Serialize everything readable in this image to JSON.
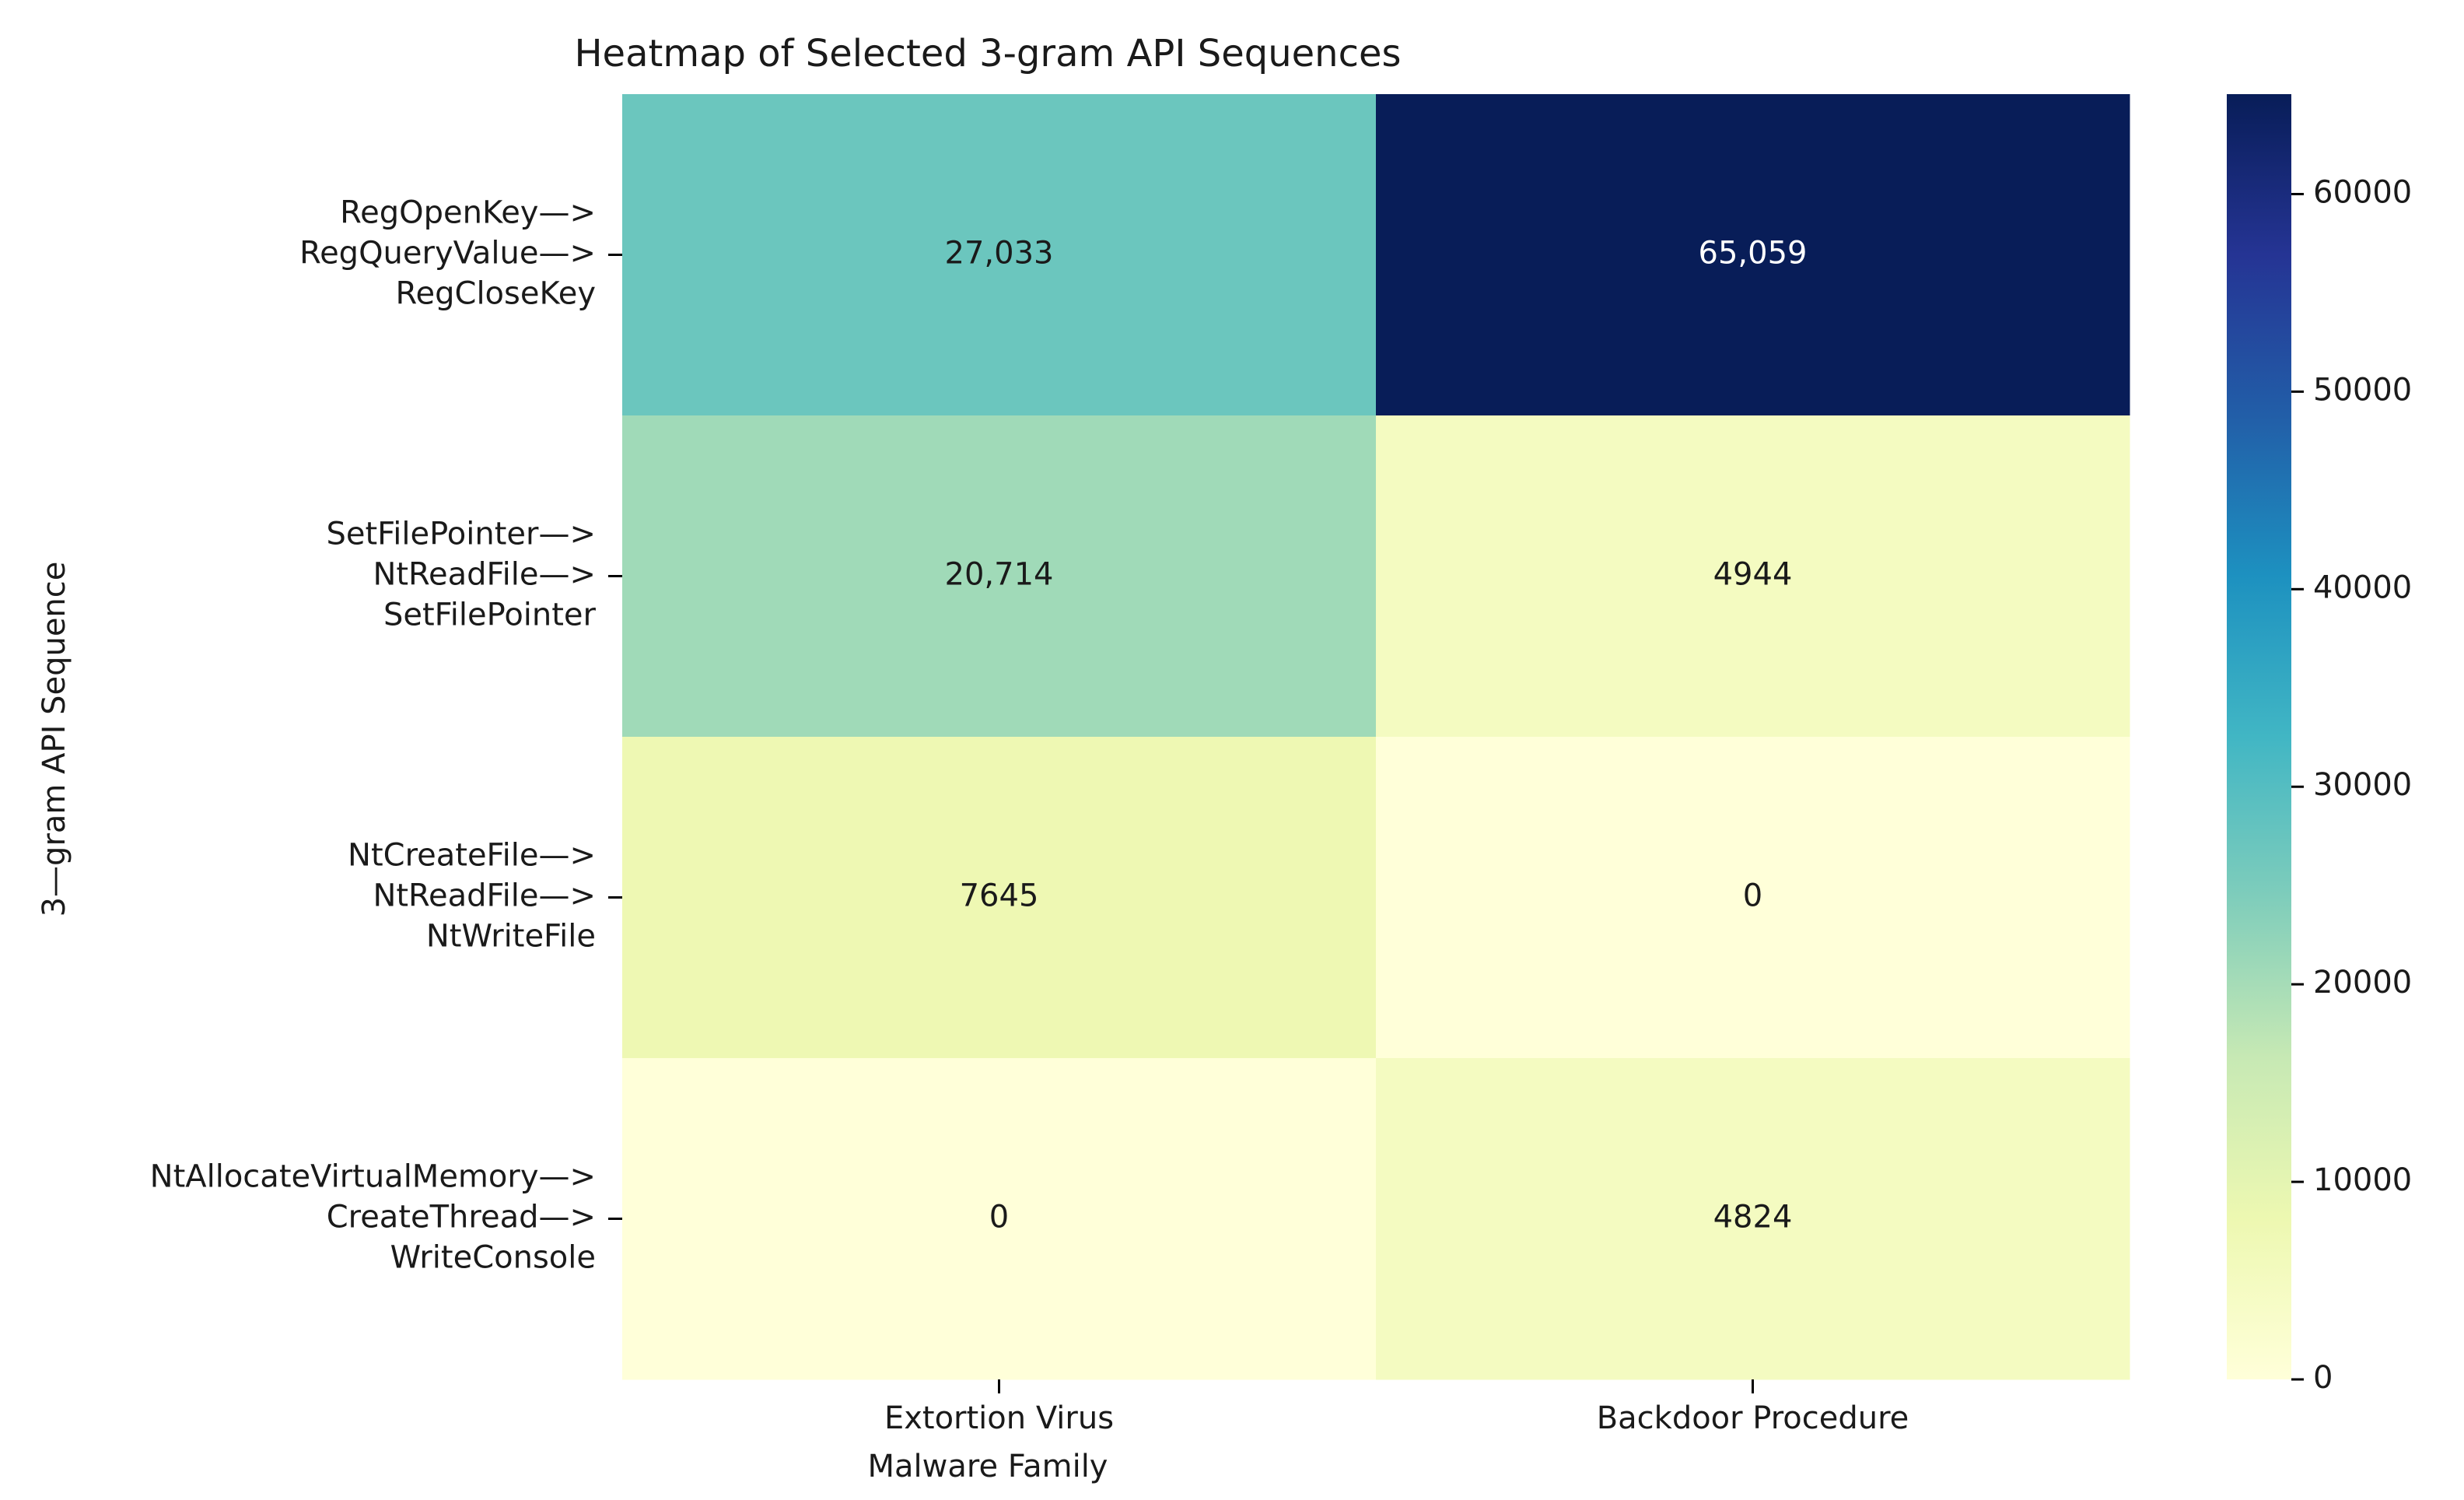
{
  "chart_data": {
    "type": "heatmap",
    "title": "Heatmap of Selected 3-gram API Sequences",
    "xlabel": "Malware Family",
    "ylabel": "3—gram API Sequence",
    "columns": [
      "Extortion Virus",
      "Backdoor Procedure"
    ],
    "rows": [
      {
        "lines": [
          "RegOpenKey—>",
          "RegQueryValue—>",
          "RegCloseKey"
        ],
        "values": [
          27033,
          65059
        ],
        "labels": [
          "27,033",
          "65,059"
        ]
      },
      {
        "lines": [
          "SetFilePointer—>",
          "NtReadFile—>",
          "SetFilePointer"
        ],
        "values": [
          20714,
          4944
        ],
        "labels": [
          "20,714",
          "4944"
        ]
      },
      {
        "lines": [
          "NtCreateFile—>",
          "NtReadFile—>",
          "NtWriteFile"
        ],
        "values": [
          7645,
          0
        ],
        "labels": [
          "7645",
          "0"
        ]
      },
      {
        "lines": [
          "NtAllocateVirtualMemory—>",
          "CreateThread—>",
          "WriteConsole"
        ],
        "values": [
          0,
          4824
        ],
        "labels": [
          "0",
          "4824"
        ]
      }
    ],
    "colormap": "YlGnBu",
    "colorbar": {
      "range": [
        0,
        65059
      ],
      "ticks": [
        0,
        10000,
        20000,
        30000,
        40000,
        50000,
        60000
      ],
      "tick_labels": [
        "0",
        "10000",
        "20000",
        "30000",
        "40000",
        "50000",
        "60000"
      ]
    }
  }
}
